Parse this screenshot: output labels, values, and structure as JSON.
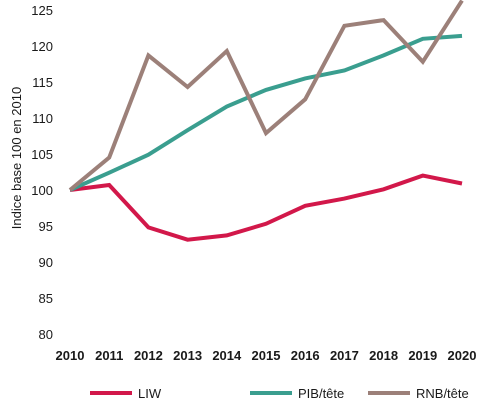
{
  "chart_data": {
    "type": "line",
    "title": "",
    "xlabel": "",
    "ylabel": "Indice base 100 en 2010",
    "x": [
      2010,
      2011,
      2012,
      2013,
      2014,
      2015,
      2016,
      2017,
      2018,
      2019,
      2020
    ],
    "ylim": [
      80,
      125
    ],
    "yticks": [
      80,
      85,
      90,
      95,
      100,
      105,
      110,
      115,
      120,
      125
    ],
    "grid": false,
    "legend_position": "bottom",
    "series": [
      {
        "name": "LIW",
        "color": "#d2184a",
        "values": [
          100,
          100.7,
          94.8,
          93.1,
          93.7,
          95.3,
          97.8,
          98.8,
          100.1,
          102,
          100.9
        ]
      },
      {
        "name": "PIB/tête",
        "color": "#3a9e8f",
        "values": [
          100,
          102.4,
          104.9,
          108.3,
          111.6,
          113.9,
          115.5,
          116.6,
          118.7,
          121,
          121.4
        ]
      },
      {
        "name": "RNB/tête",
        "color": "#9c8079",
        "values": [
          100,
          104.5,
          118.7,
          114.3,
          119.3,
          107.9,
          112.6,
          122.8,
          123.6,
          117.8,
          126.3
        ]
      }
    ]
  }
}
